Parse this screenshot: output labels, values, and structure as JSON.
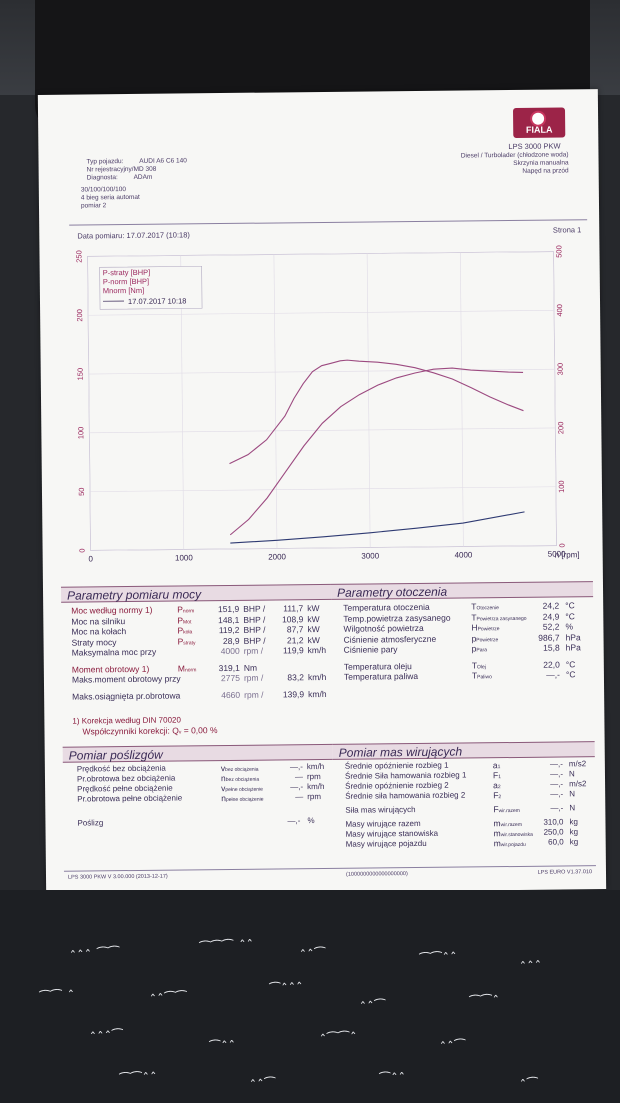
{
  "header": {
    "brand": "FIALA",
    "product": "LPS 3000 PKW",
    "engine_type": "Diesel / Turbolader (chłodzone woda)",
    "gearbox": "Skrzynia manualna",
    "drive": "Napęd na przód",
    "vehicle_type_label": "Typ pojazdu:",
    "vehicle_type": "AUDI A6 C6 140",
    "reg_number_label": "Nr rejestracyjny/MD 308",
    "diagnosta_label": "Diagnosta:",
    "diagnosta": "ADAm",
    "setup_line1": "30/100/100/100",
    "setup_line2": "4 bieg seria automat",
    "setup_line3": "pomiar 2",
    "date_label": "Data pomiaru: 17.07.2017 (10:18)",
    "page_label": "Strona 1"
  },
  "chart_data": {
    "type": "line",
    "x_axis_label": "n [rpm]",
    "x_ticks": [
      "0",
      "1000",
      "2000",
      "3000",
      "4000",
      "5000"
    ],
    "left_ticks": [
      "0",
      "50",
      "100",
      "150",
      "200",
      "250"
    ],
    "right_ticks": [
      "0",
      "100",
      "200",
      "300",
      "400",
      "500"
    ],
    "xlim": [
      0,
      5000
    ],
    "ylim_left": [
      0,
      250
    ],
    "ylim_right": [
      0,
      500
    ],
    "legend": [
      "P-straty [BHP]",
      "P-norm [BHP]",
      "Mnorm [Nm]",
      "17.07.2017 10:18"
    ],
    "series": [
      {
        "name": "P-norm [BHP]",
        "axis": "left",
        "color": "#9c4a80",
        "x": [
          1500,
          1700,
          1900,
          2100,
          2300,
          2500,
          2700,
          2900,
          3100,
          3300,
          3500,
          3700,
          3900,
          4100,
          4300,
          4500,
          4660
        ],
        "y": [
          12,
          25,
          43,
          65,
          87,
          106,
          120,
          130,
          138,
          144,
          148,
          151,
          151.9,
          150,
          149,
          148,
          147.5
        ]
      },
      {
        "name": "Mnorm [Nm]",
        "axis": "right",
        "color": "#9c4a80",
        "x": [
          1500,
          1700,
          1900,
          2100,
          2200,
          2300,
          2400,
          2500,
          2600,
          2700,
          2775,
          2900,
          3100,
          3300,
          3500,
          3700,
          3900,
          4100,
          4300,
          4500,
          4660
        ],
        "y": [
          145,
          160,
          185,
          225,
          255,
          280,
          300,
          310,
          314,
          318,
          319.1,
          317,
          315,
          311,
          305,
          296,
          285,
          270,
          254,
          240,
          230
        ]
      },
      {
        "name": "P-straty [BHP]",
        "axis": "left",
        "color": "#2e3a72",
        "x": [
          1500,
          2000,
          2500,
          3000,
          3500,
          4000,
          4660
        ],
        "y": [
          5,
          7,
          9.5,
          12.5,
          16,
          20,
          28.9
        ]
      }
    ]
  },
  "power": {
    "title": "Parametry pomiaru mocy",
    "rows": [
      {
        "label": "Moc według normy",
        "note": "1)",
        "sym": "P",
        "sub": "norm",
        "v1": "151,9",
        "u1": "BHP /",
        "v2": "111,7",
        "u2": "kW"
      },
      {
        "label": "Moc na silniku",
        "note": "",
        "sym": "P",
        "sub": "Mot",
        "v1": "148,1",
        "u1": "BHP /",
        "v2": "108,9",
        "u2": "kW"
      },
      {
        "label": "Moc na kołach",
        "note": "",
        "sym": "P",
        "sub": "koła",
        "v1": "119,2",
        "u1": "BHP /",
        "v2": "87,7",
        "u2": "kW"
      },
      {
        "label": "Straty mocy",
        "note": "",
        "sym": "P",
        "sub": "straty",
        "v1": "28,9",
        "u1": "BHP /",
        "v2": "21,2",
        "u2": "kW"
      },
      {
        "label": "Maksymalna moc przy",
        "note": "",
        "sym": "",
        "sub": "",
        "v1": "4000",
        "u1": "rpm /",
        "v2": "119,9",
        "u2": "km/h"
      }
    ],
    "torque_rows": [
      {
        "label": "Moment obrotowy",
        "note": "1)",
        "sym": "M",
        "sub": "norm",
        "v1": "319,1",
        "u1": "Nm",
        "v2": "",
        "u2": ""
      },
      {
        "label": "Maks.moment obrotowy przy",
        "note": "",
        "sym": "",
        "sub": "",
        "v1": "2775",
        "u1": "rpm /",
        "v2": "83,2",
        "u2": "km/h"
      }
    ],
    "max_speed_row": {
      "label": "Maks.osiągnięta pr.obrotowa",
      "v1": "4660",
      "u1": "rpm /",
      "v2": "139,9",
      "u2": "km/h"
    },
    "correction_note": "1) Korekcja według DIN 70020",
    "correction_factor_label": "Współczynniki korekcji: Q",
    "correction_factor_sub": "v",
    "correction_factor_value": "= 0,00 %"
  },
  "ambient": {
    "title": "Parametry otoczenia",
    "rows": [
      {
        "label": "Temperatura otoczenia",
        "sym": "T",
        "sub": "Otoczenie",
        "value": "24,2",
        "unit": "°C"
      },
      {
        "label": "Temp.powietrza zasysanego",
        "sym": "T",
        "sub": "Powietrza zasysanego",
        "value": "24,9",
        "unit": "°C"
      },
      {
        "label": "Wilgotność powietrza",
        "sym": "H",
        "sub": "Powietrze",
        "value": "52,2",
        "unit": "%"
      },
      {
        "label": "Ciśnienie atmosferyczne",
        "sym": "p",
        "sub": "Powietrze",
        "value": "986,7",
        "unit": "hPa"
      },
      {
        "label": "Ciśnienie pary",
        "sym": "p",
        "sub": "Para",
        "value": "15,8",
        "unit": "hPa"
      },
      {
        "label": "Temperatura oleju",
        "sym": "T",
        "sub": "Olej",
        "value": "22,0",
        "unit": "°C"
      },
      {
        "label": "Temperatura paliwa",
        "sym": "T",
        "sub": "Paliwo",
        "value": "—,-",
        "unit": "°C"
      }
    ]
  },
  "slip": {
    "title": "Pomiar poślizgów",
    "rows": [
      {
        "label": "Prędkość bez obciążenia",
        "sym": "v",
        "sub": "bez obciążenia",
        "value": "—,-",
        "unit": "km/h"
      },
      {
        "label": "Pr.obrotowa bez obciążenia",
        "sym": "n",
        "sub": "bez obciążenia",
        "value": "—",
        "unit": "rpm"
      },
      {
        "label": "Prędkość pełne obciążenie",
        "sym": "v",
        "sub": "pełne obciążenie",
        "value": "—,-",
        "unit": "km/h"
      },
      {
        "label": "Pr.obrotowa pełne obciążenie",
        "sym": "n",
        "sub": "pełne obciążenie",
        "value": "—",
        "unit": "rpm"
      }
    ],
    "slip_label": "Poślizg",
    "slip_value": "—,-",
    "slip_unit": "%"
  },
  "inertia": {
    "title": "Pomiar mas wirujących",
    "rows": [
      {
        "label": "Średnie opóźnienie rozbieg 1",
        "sym": "a",
        "sub": "1",
        "value": "—,-",
        "unit": "m/s2"
      },
      {
        "label": "Średnie Siła hamowania rozbieg 1",
        "sym": "F",
        "sub": "1",
        "value": "—,-",
        "unit": "N"
      },
      {
        "label": "Średnie opóźnienie rozbieg 2",
        "sym": "a",
        "sub": "2",
        "value": "—,-",
        "unit": "m/s2"
      },
      {
        "label": "Średnie siła hamowania rozbieg 2",
        "sym": "F",
        "sub": "2",
        "value": "—,-",
        "unit": "N"
      },
      {
        "label": "Siła mas wirujących",
        "sym": "F",
        "sub": "wir.razem",
        "value": "—,-",
        "unit": "N"
      },
      {
        "label": "Masy wirujące razem",
        "sym": "m",
        "sub": "wir.razem",
        "value": "310,0",
        "unit": "kg"
      },
      {
        "label": "Masy wirujące stanowiska",
        "sym": "m",
        "sub": "wir.stanowiska",
        "value": "250,0",
        "unit": "kg"
      },
      {
        "label": "Masy wirujące pojazdu",
        "sym": "m",
        "sub": "wir.pojazdu",
        "value": "60,0",
        "unit": "kg"
      }
    ]
  },
  "footer": {
    "left": "LPS 3000 PKW V 3.00.000 (2013-12-17)",
    "center": "(1000000000000000000)",
    "right": "LPS EURO V1.37.010"
  }
}
